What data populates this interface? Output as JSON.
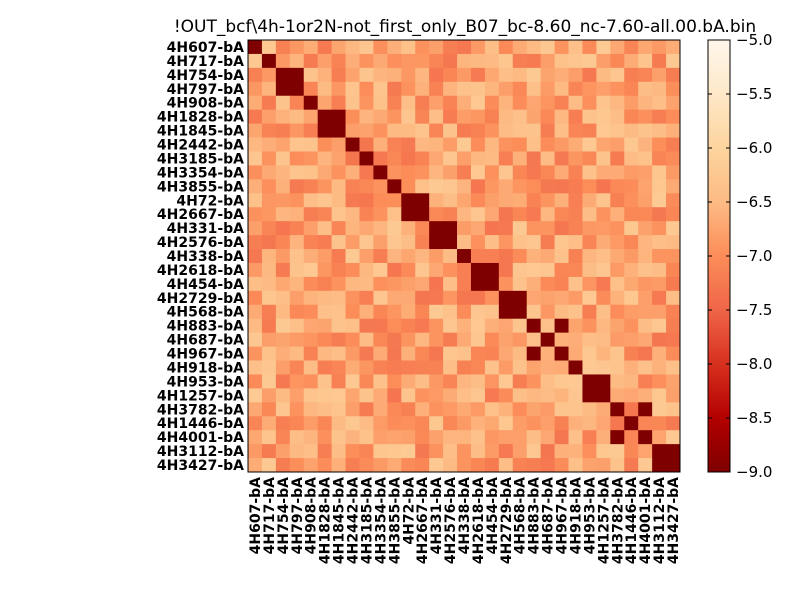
{
  "chart_data": {
    "type": "heatmap",
    "title": "!OUT_bcf\\4h-1or2N-not_first_only_B07_bc-8.60_nc-7.60-all.00.bA.bin",
    "labels": [
      "4H607-bA",
      "4H717-bA",
      "4H754-bA",
      "4H797-bA",
      "4H908-bA",
      "4H1828-bA",
      "4H1845-bA",
      "4H2442-bA",
      "4H3185-bA",
      "4H3354-bA",
      "4H3855-bA",
      "4H72-bA",
      "4H2667-bA",
      "4H331-bA",
      "4H2576-bA",
      "4H338-bA",
      "4H2618-bA",
      "4H454-bA",
      "4H2729-bA",
      "4H568-bA",
      "4H883-bA",
      "4H687-bA",
      "4H967-bA",
      "4H918-bA",
      "4H953-bA",
      "4H1257-bA",
      "4H3782-bA",
      "4H1446-bA",
      "4H4001-bA",
      "4H3112-bA",
      "4H3427-bA"
    ],
    "colorbar": {
      "min": -9.0,
      "max": -5.0,
      "ticks": [
        "−5.0",
        "−5.5",
        "−6.0",
        "−6.5",
        "−7.0",
        "−7.5",
        "−8.0",
        "−8.5",
        "−9.0"
      ],
      "colormap": "OrRd_r"
    },
    "diagonal_value": -9.0,
    "pairs": [
      {
        "a": 2,
        "b": 3,
        "v": -9.0
      },
      {
        "a": 5,
        "b": 6,
        "v": -9.0
      },
      {
        "a": 11,
        "b": 12,
        "v": -9.0
      },
      {
        "a": 13,
        "b": 14,
        "v": -9.0
      },
      {
        "a": 16,
        "b": 17,
        "v": -9.0
      },
      {
        "a": 18,
        "b": 19,
        "v": -9.0
      },
      {
        "a": 20,
        "b": 22,
        "v": -9.0
      },
      {
        "a": 24,
        "b": 25,
        "v": -9.0
      },
      {
        "a": 26,
        "b": 28,
        "v": -9.0
      },
      {
        "a": 29,
        "b": 30,
        "v": -9.0
      }
    ],
    "typical_offdiagonal_range": [
      -7.3,
      -6.2
    ]
  }
}
